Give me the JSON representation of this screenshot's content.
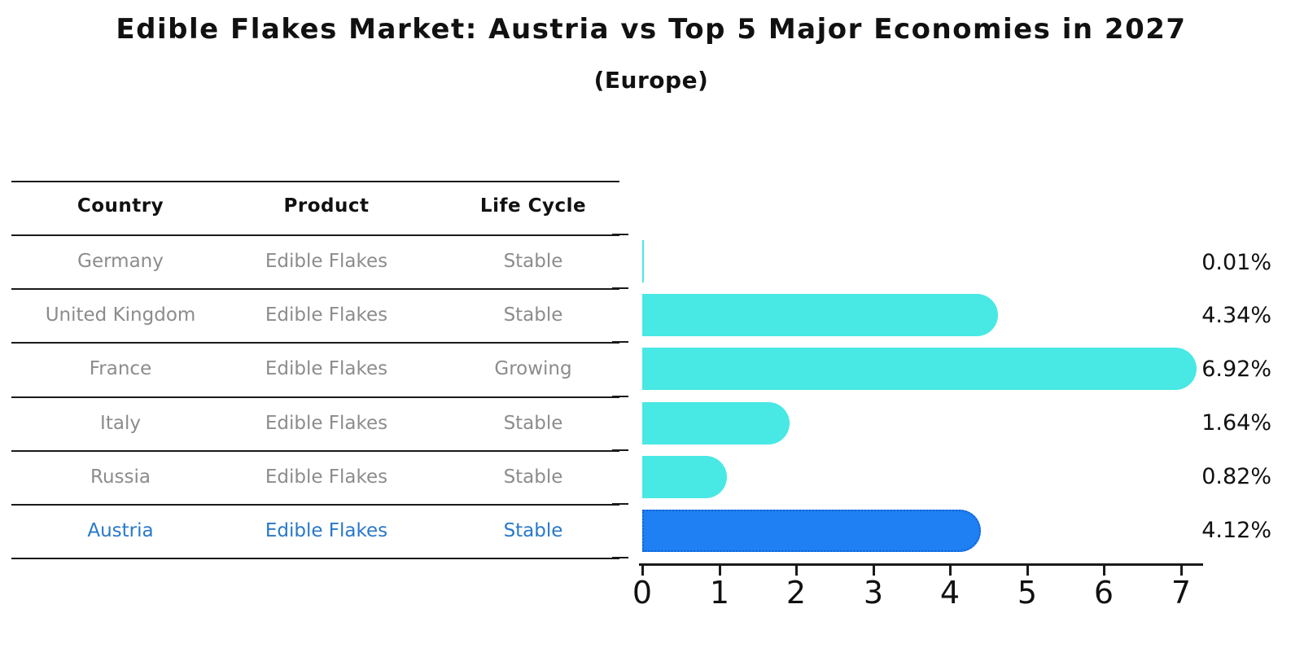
{
  "title": "Edible Flakes Market: Austria vs Top 5 Major Economies in 2027",
  "subtitle": "(Europe)",
  "colors": {
    "bar_default": "#48e8e4",
    "bar_highlight": "#1e80f2",
    "bar_highlight_border": "#1263d6",
    "table_text": "#8c8c8c",
    "highlight_text": "#2878c8",
    "axis_text": "#111111"
  },
  "table": {
    "headers": [
      "Country",
      "Product",
      "Life Cycle"
    ],
    "rows": [
      {
        "country": "Germany",
        "product": "Edible Flakes",
        "life_cycle": "Stable",
        "highlight": false
      },
      {
        "country": "United Kingdom",
        "product": "Edible Flakes",
        "life_cycle": "Stable",
        "highlight": false
      },
      {
        "country": "France",
        "product": "Edible Flakes",
        "life_cycle": "Growing",
        "highlight": false
      },
      {
        "country": "Italy",
        "product": "Edible Flakes",
        "life_cycle": "Stable",
        "highlight": false
      },
      {
        "country": "Russia",
        "product": "Edible Flakes",
        "life_cycle": "Stable",
        "highlight": false
      },
      {
        "country": "Austria",
        "product": "Edible Flakes",
        "life_cycle": "Stable",
        "highlight": true
      }
    ]
  },
  "chart_data": {
    "type": "bar",
    "orientation": "horizontal",
    "categories": [
      "Germany",
      "United Kingdom",
      "France",
      "Italy",
      "Russia",
      "Austria"
    ],
    "values": [
      0.01,
      4.34,
      6.92,
      1.64,
      0.82,
      4.12
    ],
    "value_labels": [
      "0.01%",
      "4.34%",
      "6.92%",
      "1.64%",
      "0.82%",
      "4.12%"
    ],
    "highlight_category": "Austria",
    "title": "Edible Flakes Market: Austria vs Top 5 Major Economies in 2027",
    "subtitle": "(Europe)",
    "xlabel": "",
    "ylabel": "",
    "xlim": [
      0,
      7.3
    ],
    "x_ticks": [
      0,
      1,
      2,
      3,
      4,
      5,
      6,
      7
    ],
    "grid": false,
    "legend": false
  }
}
